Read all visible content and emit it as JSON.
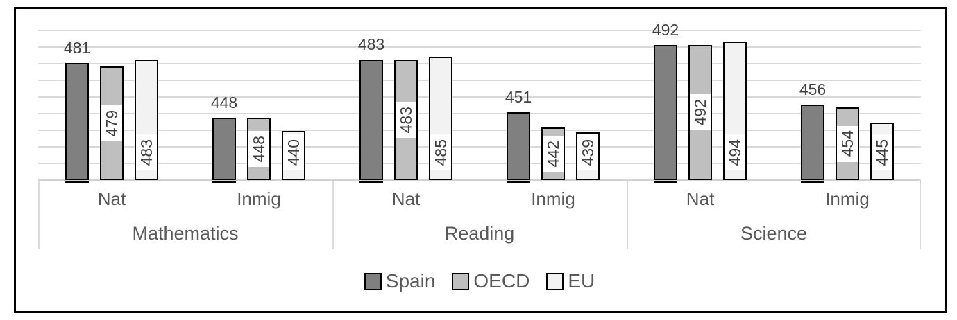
{
  "chart_data": {
    "type": "bar",
    "title": "",
    "groups": [
      "Mathematics",
      "Reading",
      "Science"
    ],
    "subgroups": [
      "Nat",
      "Inmig"
    ],
    "series": [
      {
        "name": "Spain",
        "color": "#808080",
        "label_placement": "above",
        "base_tick": true,
        "values": [
          481,
          448,
          483,
          451,
          492,
          456
        ]
      },
      {
        "name": "OECD",
        "color": "#BFBFBF",
        "label_placement": "inside-center",
        "base_tick": false,
        "values": [
          479,
          448,
          483,
          442,
          492,
          454
        ]
      },
      {
        "name": "EU",
        "color": "#F2F2F2",
        "label_placement": "inside-base",
        "base_tick": false,
        "values": [
          483,
          440,
          485,
          439,
          494,
          445
        ]
      }
    ],
    "value_axis": {
      "min": 410,
      "max": 505,
      "gridline_step": 10,
      "tick_labels_visible": false,
      "grid": true
    },
    "legend": {
      "position": "bottom",
      "entries": [
        "Spain",
        "OECD",
        "EU"
      ]
    },
    "colors": {
      "bar_border": "#000000",
      "gridline": "#D9D9D9",
      "axis_line": "#D2D2D2",
      "divider": "#D9D9D9",
      "category_text": "#595959",
      "value_text": "#404040",
      "legend_text": "#595959",
      "frame_border": "#000000",
      "background": "#FFFFFF",
      "label_box_background": "#FFFFFF"
    }
  }
}
